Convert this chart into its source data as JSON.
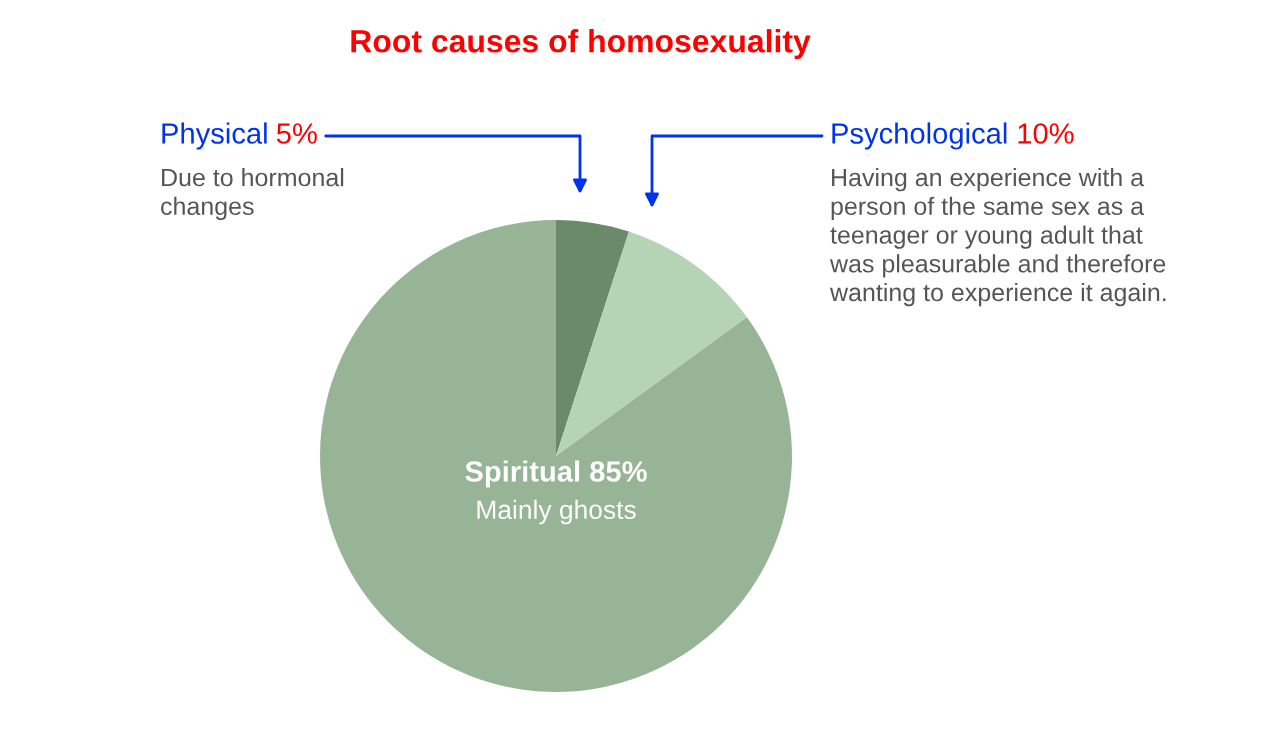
{
  "chart_data": {
    "type": "pie",
    "title": "Root causes of homosexuality",
    "categories": [
      "Physical",
      "Psychological",
      "Spiritual"
    ],
    "values": [
      5,
      10,
      85
    ],
    "value_labels": [
      "5%",
      "10%",
      "85%"
    ],
    "colors": [
      "#6b8a6b",
      "#b5d3b5",
      "#97b497"
    ],
    "annotations": [
      "Due to hormonal\nchanges",
      "Having an experience with a\nperson of the same sex as a\nteenager or young adult that\nwas pleasurable and therefore\nwanting to experience it again.",
      "Mainly ghosts"
    ]
  }
}
